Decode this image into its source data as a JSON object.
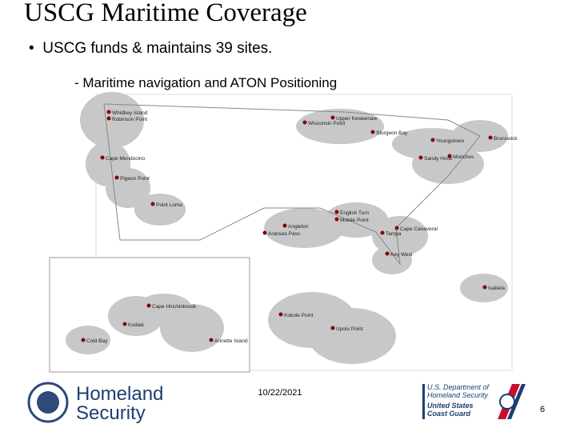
{
  "header": {
    "title": "USCG Maritime Coverage"
  },
  "body": {
    "bullet": "USCG funds & maintains 39 sites.",
    "sub_bullet": "Maritime navigation and ATON Positioning"
  },
  "map": {
    "labels": [
      "Whidbey Island",
      "Robinson Point",
      "Cape Mendocino",
      "Pigeon Point",
      "Point Loma",
      "Upper Keweenaw",
      "Wisconsin Point",
      "Sturgeon Bay",
      "Youngstown",
      "Brunswick",
      "Sandy Hook",
      "Moriches",
      "English Turn",
      "Mobile Point",
      "Angleton",
      "Aransas Pass",
      "Cape Canaveral",
      "Tampa",
      "Key West",
      "Isabela",
      "Cape Hinchinbrook",
      "Kodiak",
      "Cold Bay",
      "Annette Island",
      "Kokole Point",
      "Upolu Point"
    ]
  },
  "footer": {
    "date": "10/22/2021",
    "page": "6",
    "dhs_logo": [
      "Homeland",
      "Security"
    ],
    "uscg_logo": [
      "U.S. Department of",
      "Homeland Security",
      "United States",
      "Coast Guard"
    ]
  }
}
